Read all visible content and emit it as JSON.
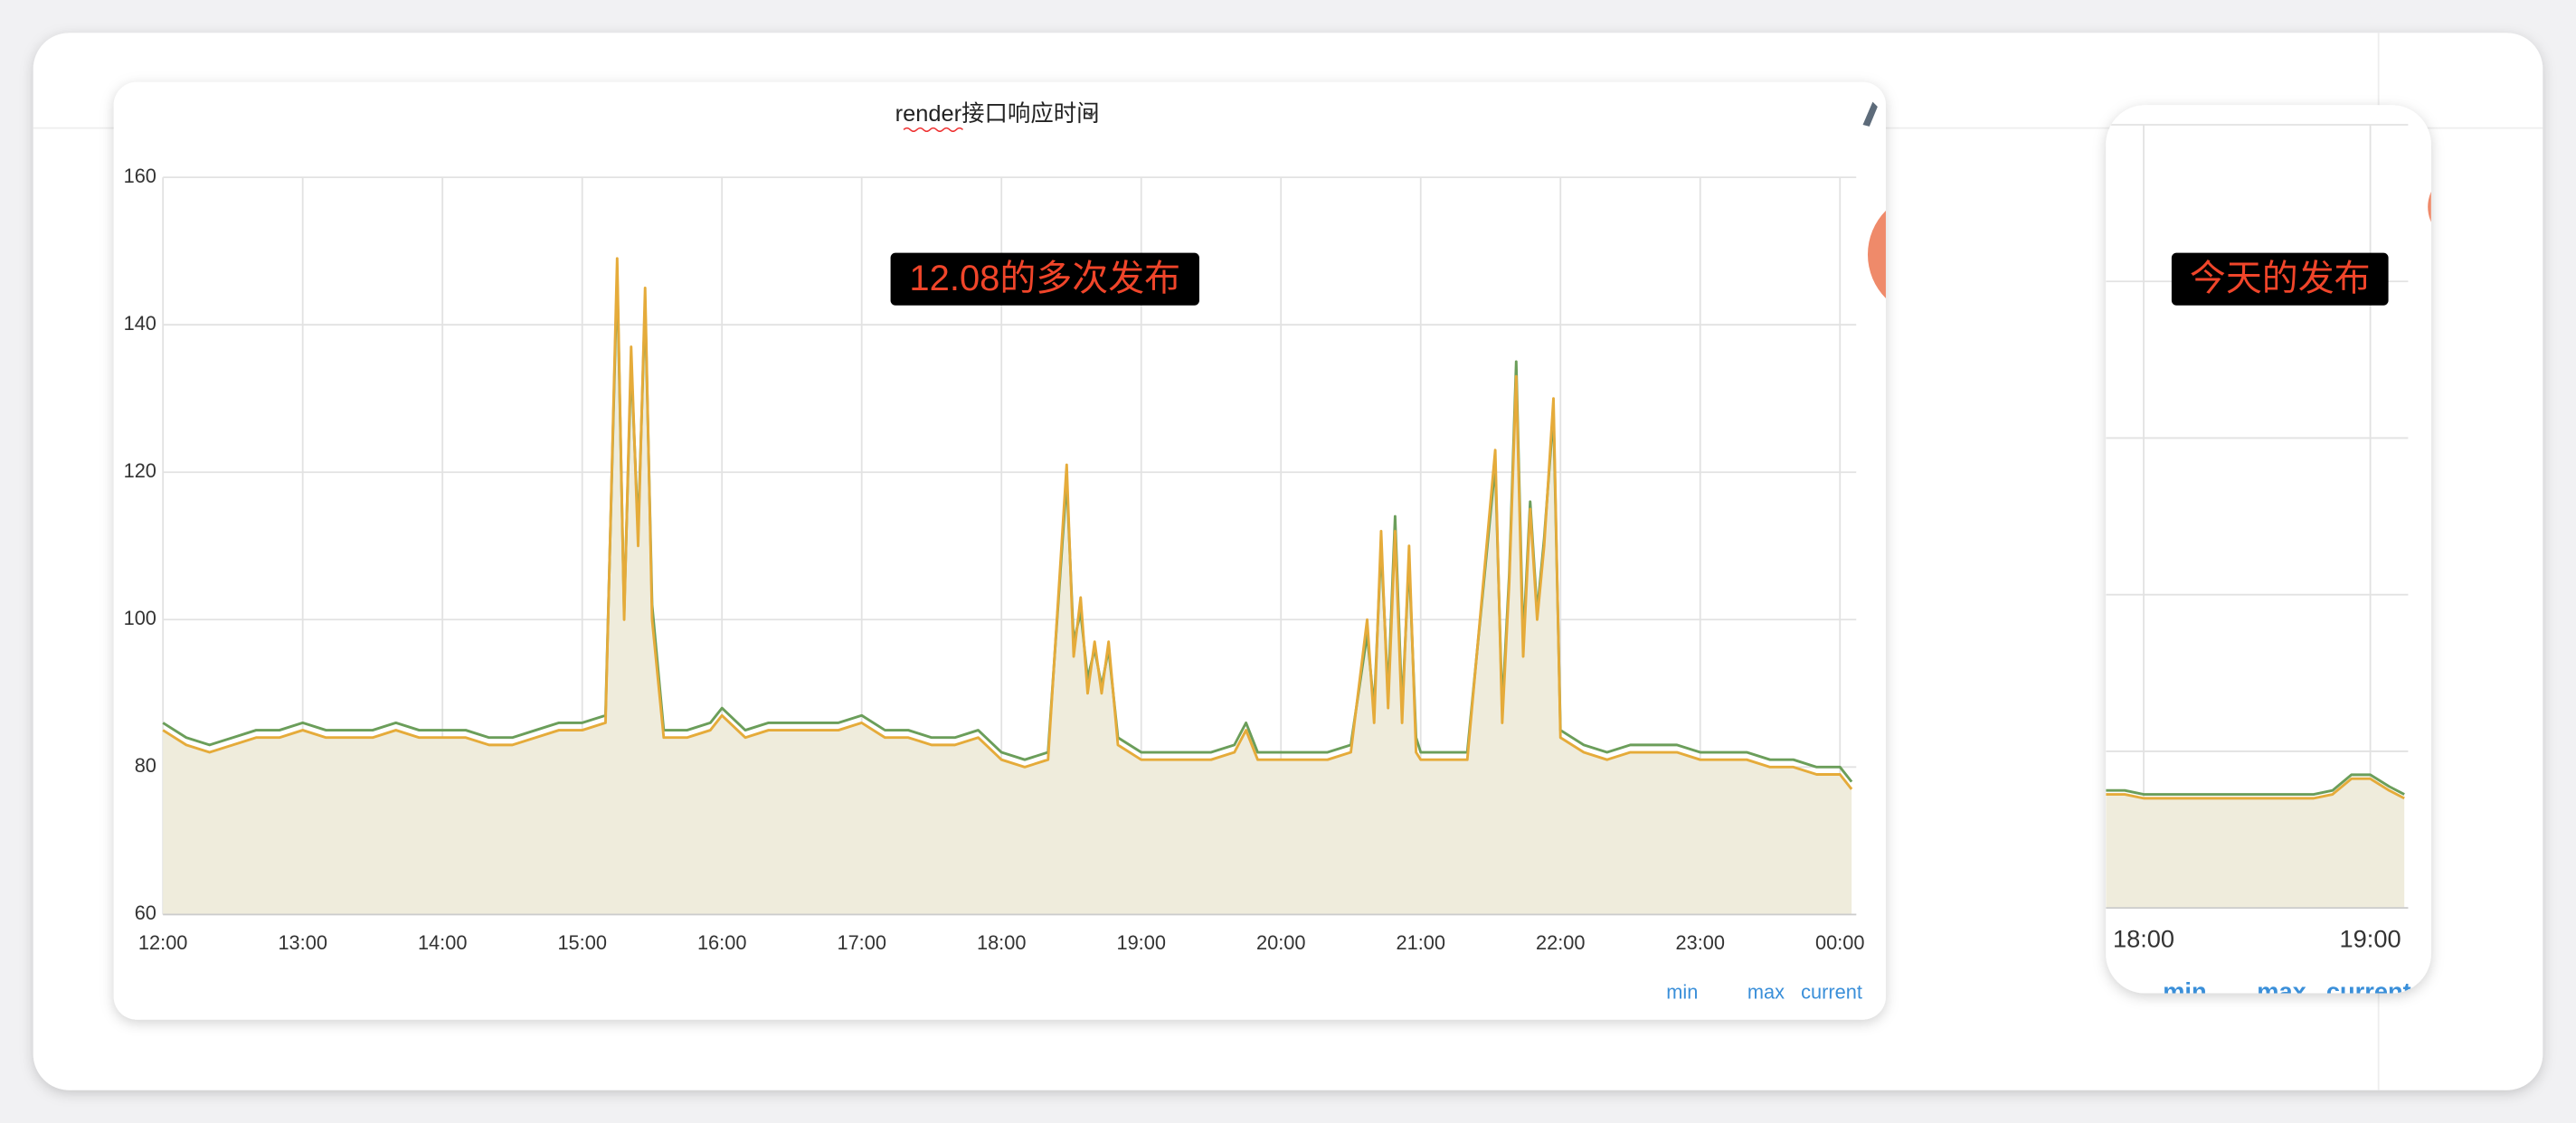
{
  "chart_data": [
    {
      "type": "line",
      "title": "render接口响应时间",
      "annotation": "12.08的多次发布",
      "legend_columns": [
        "min",
        "max",
        "current"
      ],
      "x": [
        "12:00",
        "12:10",
        "12:20",
        "12:30",
        "12:40",
        "12:50",
        "13:00",
        "13:10",
        "13:20",
        "13:30",
        "13:40",
        "13:50",
        "14:00",
        "14:10",
        "14:20",
        "14:30",
        "14:40",
        "14:50",
        "15:00",
        "15:10",
        "15:15",
        "15:18",
        "15:21",
        "15:24",
        "15:27",
        "15:30",
        "15:35",
        "15:45",
        "15:55",
        "16:00",
        "16:10",
        "16:20",
        "16:30",
        "16:40",
        "16:50",
        "17:00",
        "17:10",
        "17:20",
        "17:30",
        "17:40",
        "17:50",
        "18:00",
        "18:10",
        "18:20",
        "18:28",
        "18:31",
        "18:34",
        "18:37",
        "18:40",
        "18:43",
        "18:46",
        "18:50",
        "19:00",
        "19:10",
        "19:20",
        "19:30",
        "19:40",
        "19:45",
        "19:50",
        "20:00",
        "20:10",
        "20:20",
        "20:30",
        "20:37",
        "20:40",
        "20:43",
        "20:46",
        "20:49",
        "20:52",
        "20:55",
        "20:58",
        "21:00",
        "21:10",
        "21:20",
        "21:32",
        "21:35",
        "21:38",
        "21:41",
        "21:44",
        "21:47",
        "21:50",
        "21:53",
        "21:57",
        "22:00",
        "22:10",
        "22:20",
        "22:30",
        "22:40",
        "22:50",
        "23:00",
        "23:10",
        "23:20",
        "23:30",
        "23:40",
        "23:50",
        "00:00",
        "00:05"
      ],
      "series": [
        {
          "color": "#6b9e5a",
          "values": [
            86,
            84,
            83,
            84,
            85,
            85,
            86,
            85,
            85,
            85,
            86,
            85,
            85,
            85,
            84,
            84,
            85,
            86,
            86,
            87,
            147,
            101,
            135,
            112,
            143,
            102,
            85,
            85,
            86,
            88,
            85,
            86,
            86,
            86,
            86,
            87,
            85,
            85,
            84,
            84,
            85,
            82,
            81,
            82,
            119,
            97,
            101,
            92,
            96,
            91,
            96,
            84,
            82,
            82,
            82,
            82,
            83,
            86,
            82,
            82,
            82,
            82,
            83,
            98,
            88,
            110,
            90,
            114,
            88,
            108,
            84,
            82,
            82,
            82,
            121,
            88,
            106,
            135,
            97,
            116,
            101,
            111,
            128,
            85,
            83,
            82,
            83,
            83,
            83,
            82,
            82,
            82,
            81,
            81,
            80,
            80,
            78
          ]
        },
        {
          "color": "#e5ab3a",
          "values": [
            85,
            83,
            82,
            83,
            84,
            84,
            85,
            84,
            84,
            84,
            85,
            84,
            84,
            84,
            83,
            83,
            84,
            85,
            85,
            86,
            149,
            100,
            137,
            110,
            145,
            100,
            84,
            84,
            85,
            87,
            84,
            85,
            85,
            85,
            85,
            86,
            84,
            84,
            83,
            83,
            84,
            81,
            80,
            81,
            121,
            95,
            103,
            90,
            97,
            90,
            97,
            83,
            81,
            81,
            81,
            81,
            82,
            85,
            81,
            81,
            81,
            81,
            82,
            100,
            86,
            112,
            88,
            112,
            86,
            110,
            82,
            81,
            81,
            81,
            123,
            86,
            105,
            133,
            95,
            115,
            100,
            110,
            130,
            84,
            82,
            81,
            82,
            82,
            82,
            81,
            81,
            81,
            80,
            80,
            79,
            79,
            77
          ]
        }
      ],
      "area_color": "#efecdc",
      "xlim": [
        "12:00",
        "00:07"
      ],
      "xticks": [
        "12:00",
        "13:00",
        "14:00",
        "15:00",
        "16:00",
        "17:00",
        "18:00",
        "19:00",
        "20:00",
        "21:00",
        "22:00",
        "23:00",
        "00:00"
      ],
      "ylim": [
        60,
        160
      ],
      "yticks": [
        60,
        80,
        100,
        120,
        140,
        160
      ],
      "show_ytick_labels": true,
      "grid": true
    },
    {
      "type": "line",
      "annotation": "今天的发布",
      "legend_columns": [
        "min",
        "max",
        "current"
      ],
      "x": [
        "17:50",
        "17:55",
        "18:00",
        "18:10",
        "18:20",
        "18:30",
        "18:40",
        "18:45",
        "18:50",
        "18:55",
        "19:00",
        "19:05",
        "19:09"
      ],
      "series": [
        {
          "color": "#6b9e5a",
          "values": [
            75,
            75,
            74.5,
            74.5,
            74.5,
            74.5,
            74.5,
            74.5,
            75,
            77,
            77,
            75.5,
            74.5
          ]
        },
        {
          "color": "#e5ab3a",
          "values": [
            74.5,
            74.5,
            74,
            74,
            74,
            74,
            74,
            74,
            74.5,
            76.5,
            76.5,
            75,
            74
          ]
        }
      ],
      "area_color": "#efecdc",
      "xlim": [
        "17:50",
        "19:10"
      ],
      "xticks": [
        "18:00",
        "19:00"
      ],
      "ylim": [
        60,
        160
      ],
      "yticks": [
        60,
        80,
        100,
        120,
        140,
        160
      ],
      "show_ytick_labels": false,
      "grid": true
    }
  ]
}
